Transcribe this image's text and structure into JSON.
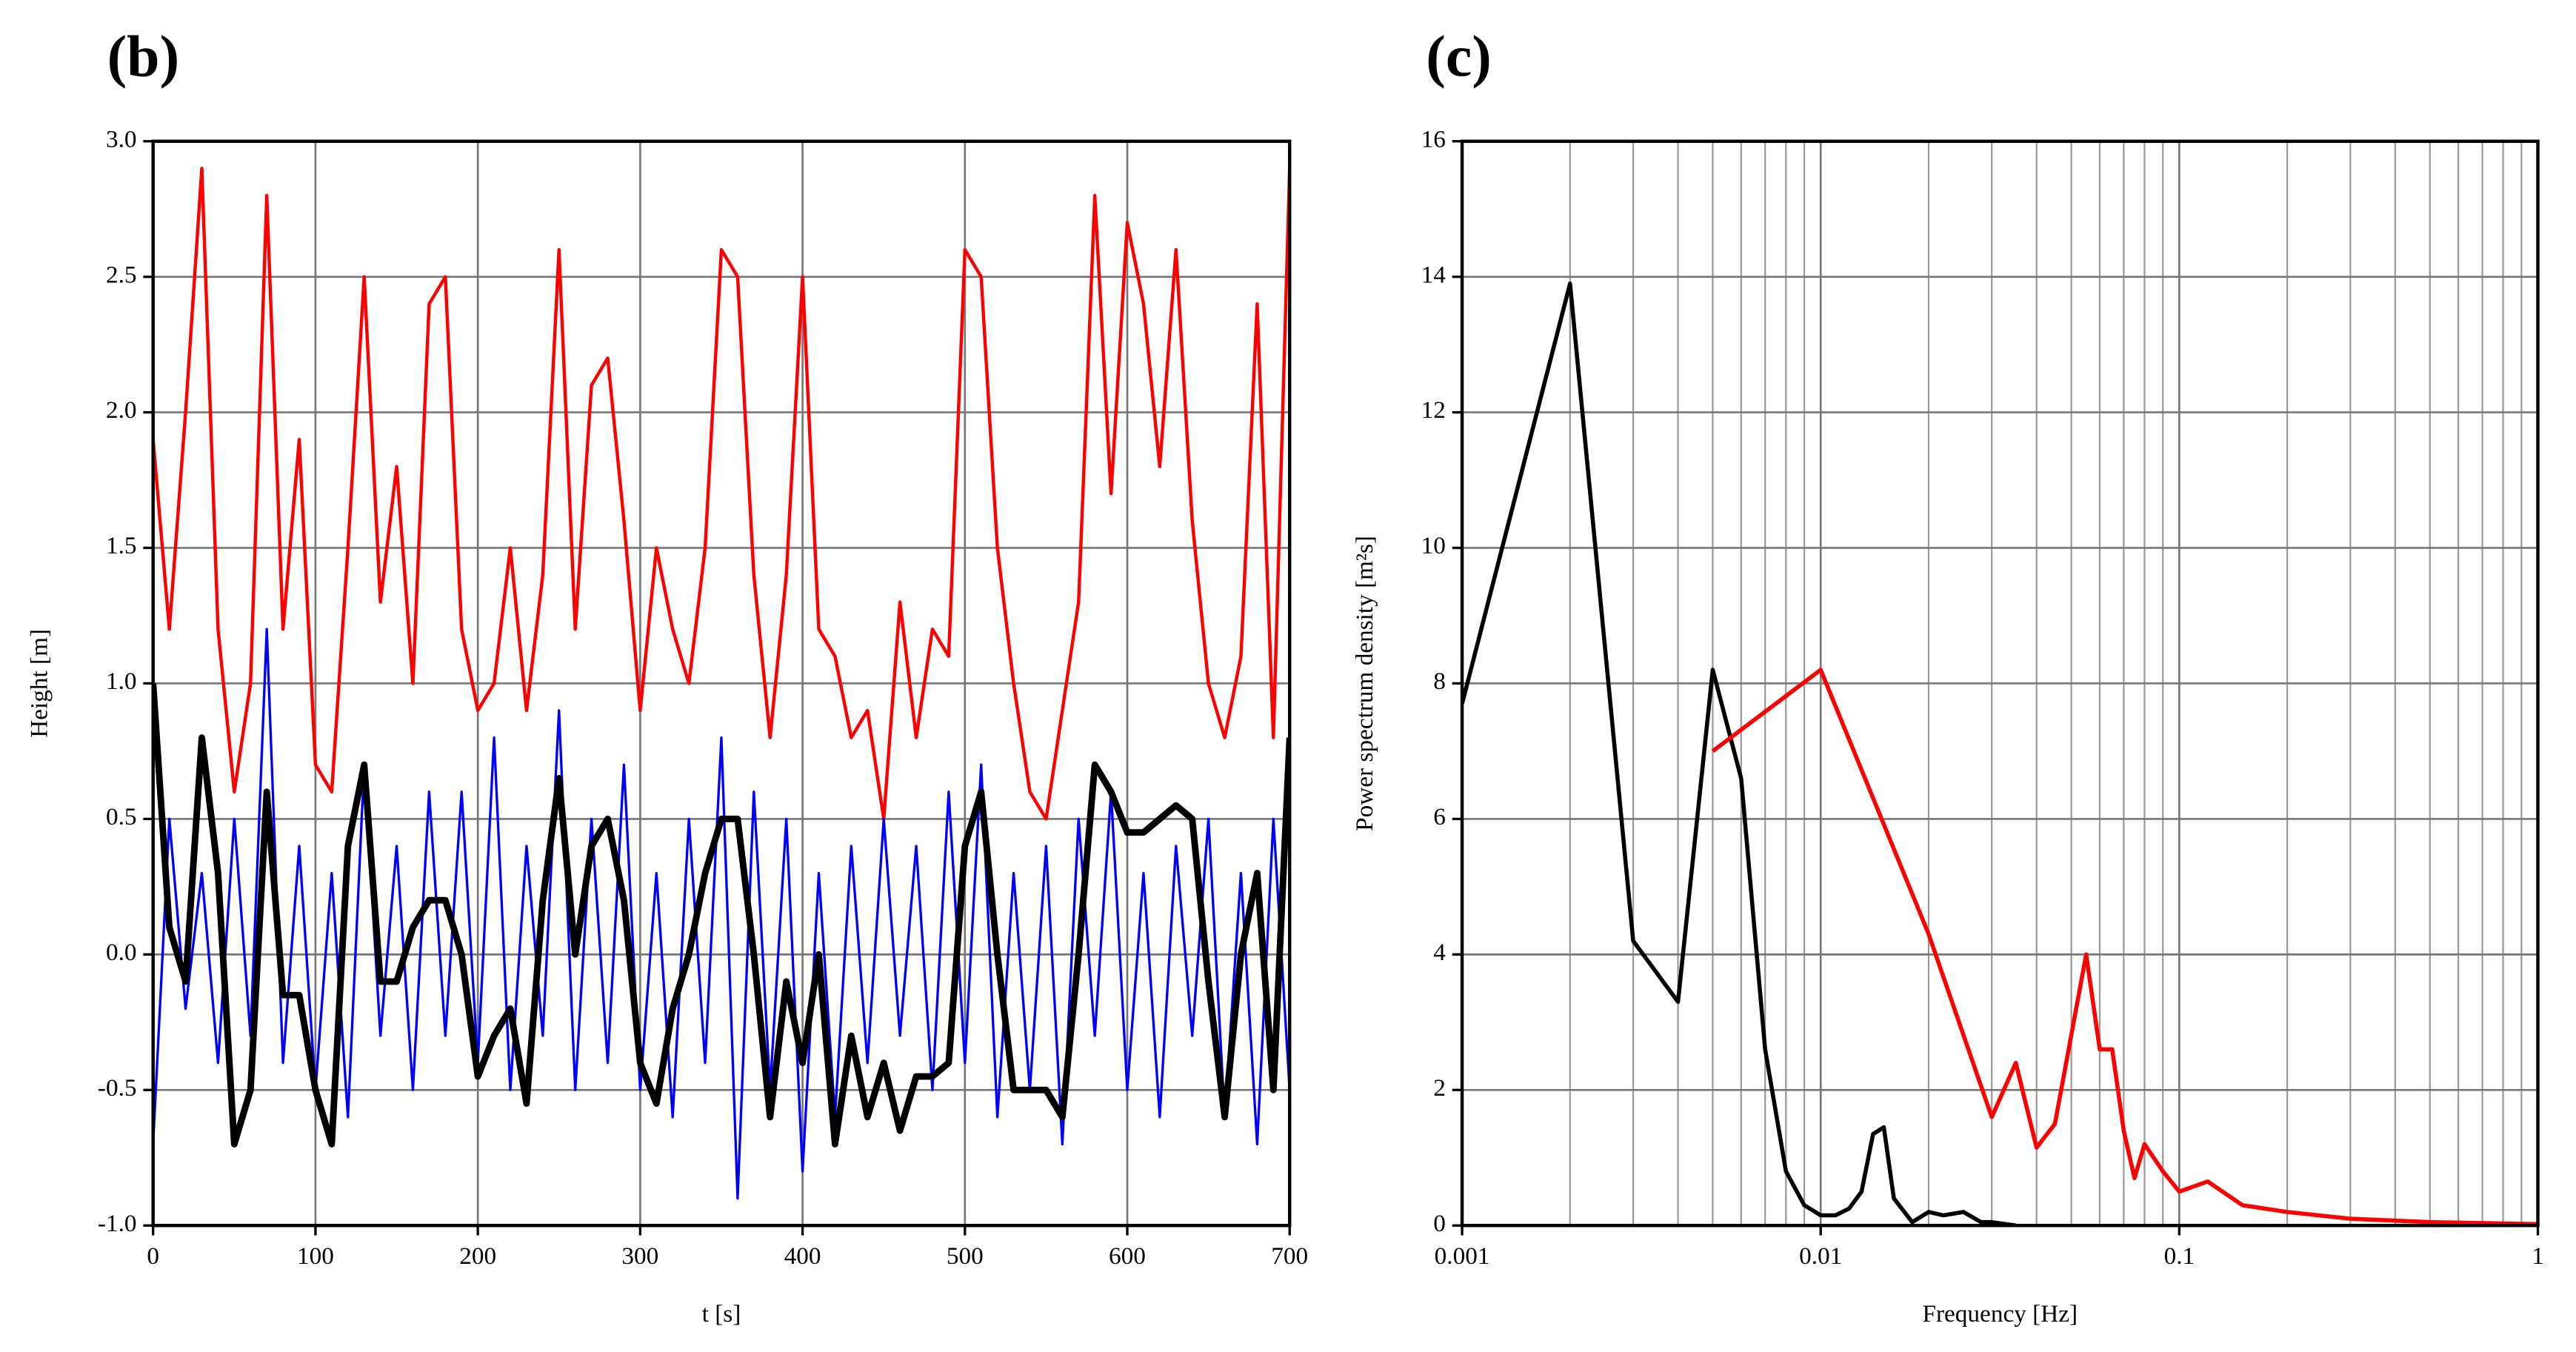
{
  "chart_data": [
    {
      "type": "line",
      "title": "(b)",
      "x_label": "t [s]",
      "y_label": "Height [m]",
      "x": [
        0,
        10,
        20,
        30,
        40,
        50,
        60,
        70,
        80,
        90,
        100,
        110,
        120,
        130,
        140,
        150,
        160,
        170,
        180,
        190,
        200,
        210,
        220,
        230,
        240,
        250,
        260,
        270,
        280,
        290,
        300,
        310,
        320,
        330,
        340,
        350,
        360,
        370,
        380,
        390,
        400,
        410,
        420,
        430,
        440,
        450,
        460,
        470,
        480,
        490,
        500,
        510,
        520,
        530,
        540,
        550,
        560,
        570,
        580,
        590,
        600,
        610,
        620,
        630,
        640,
        650,
        660,
        670,
        680,
        690,
        700
      ],
      "series": [
        {
          "color": "#ff0000",
          "width": 2,
          "values": [
            1.9,
            1.2,
            2.0,
            2.9,
            1.2,
            0.6,
            1.0,
            2.8,
            1.2,
            1.9,
            0.7,
            0.6,
            1.5,
            2.5,
            1.3,
            1.8,
            1.0,
            2.4,
            2.5,
            1.2,
            0.9,
            1.0,
            1.5,
            0.9,
            1.4,
            2.6,
            1.2,
            2.1,
            2.2,
            1.6,
            0.9,
            1.5,
            1.2,
            1.0,
            1.5,
            2.6,
            2.5,
            1.4,
            0.8,
            1.4,
            2.5,
            1.2,
            1.1,
            0.8,
            0.9,
            0.5,
            1.3,
            0.8,
            1.2,
            1.1,
            2.6,
            2.5,
            1.5,
            1.0,
            0.6,
            0.5,
            0.9,
            1.3,
            2.8,
            1.7,
            2.7,
            2.4,
            1.8,
            2.6,
            1.6,
            1.0,
            0.8,
            1.1,
            2.4,
            0.8,
            2.9
          ]
        },
        {
          "color": "#0000ff",
          "width": 1.5,
          "values": [
            -0.7,
            0.5,
            -0.2,
            0.3,
            -0.4,
            0.5,
            -0.3,
            1.2,
            -0.4,
            0.4,
            -0.5,
            0.3,
            -0.6,
            0.7,
            -0.3,
            0.4,
            -0.5,
            0.6,
            -0.3,
            0.6,
            -0.4,
            0.8,
            -0.5,
            0.4,
            -0.3,
            0.9,
            -0.5,
            0.5,
            -0.4,
            0.7,
            -0.5,
            0.3,
            -0.6,
            0.5,
            -0.4,
            0.8,
            -0.9,
            0.6,
            -0.5,
            0.5,
            -0.8,
            0.3,
            -0.6,
            0.4,
            -0.4,
            0.5,
            -0.3,
            0.4,
            -0.5,
            0.6,
            -0.4,
            0.7,
            -0.6,
            0.3,
            -0.5,
            0.4,
            -0.7,
            0.5,
            -0.3,
            0.6,
            -0.5,
            0.3,
            -0.6,
            0.4,
            -0.3,
            0.5,
            -0.6,
            0.3,
            -0.7,
            0.5,
            -0.5
          ]
        },
        {
          "color": "#000000",
          "width": 4,
          "values": [
            1.0,
            0.1,
            -0.1,
            0.8,
            0.3,
            -0.7,
            -0.5,
            0.6,
            -0.15,
            -0.15,
            -0.5,
            -0.7,
            0.4,
            0.7,
            -0.1,
            -0.1,
            0.1,
            0.2,
            0.2,
            0.0,
            -0.45,
            -0.3,
            -0.2,
            -0.55,
            0.2,
            0.65,
            0.0,
            0.4,
            0.5,
            0.2,
            -0.4,
            -0.55,
            -0.2,
            0.0,
            0.3,
            0.5,
            0.5,
            0.0,
            -0.6,
            -0.1,
            -0.4,
            0.0,
            -0.7,
            -0.3,
            -0.6,
            -0.4,
            -0.65,
            -0.45,
            -0.45,
            -0.4,
            0.4,
            0.6,
            0.0,
            -0.5,
            -0.5,
            -0.5,
            -0.6,
            0.0,
            0.7,
            0.6,
            0.45,
            0.45,
            0.5,
            0.55,
            0.5,
            -0.1,
            -0.6,
            0.0,
            0.3,
            -0.5,
            0.8
          ]
        }
      ],
      "xlim": [
        0,
        700
      ],
      "xticks": [
        0,
        100,
        200,
        300,
        400,
        500,
        600,
        700
      ],
      "ylim": [
        -1,
        3
      ],
      "yticks": [
        {
          "value": -1,
          "label": "-1.0"
        },
        -0.5,
        {
          "value": 0,
          "label": "0.0"
        },
        0.5,
        {
          "value": 1,
          "label": "1.0"
        },
        1.5,
        {
          "value": 2,
          "label": "2.0"
        },
        2.5,
        {
          "value": 3,
          "label": "3.0"
        }
      ],
      "grid": true
    },
    {
      "type": "line",
      "title": "(c)",
      "x_label": "Frequency [Hz]",
      "y_label": "Power spectrum density [m²s]",
      "x_scale": "log",
      "series": [
        {
          "color": "#000000",
          "width": 2.5,
          "x": [
            0.001,
            0.002,
            0.003,
            0.004,
            0.005,
            0.006,
            0.007,
            0.008,
            0.009,
            0.01,
            0.011,
            0.012,
            0.013,
            0.014,
            0.015,
            0.016,
            0.018,
            0.02,
            0.022,
            0.025,
            0.028,
            0.03,
            0.035
          ],
          "values": [
            7.7,
            13.9,
            4.2,
            3.3,
            8.2,
            6.6,
            2.6,
            0.8,
            0.3,
            0.15,
            0.15,
            0.25,
            0.5,
            1.35,
            1.45,
            0.4,
            0.05,
            0.2,
            0.15,
            0.2,
            0.05,
            0.05,
            0
          ]
        },
        {
          "color": "#ff0000",
          "width": 2.5,
          "x": [
            0.005,
            0.01,
            0.02,
            0.03,
            0.035,
            0.04,
            0.045,
            0.055,
            0.06,
            0.065,
            0.07,
            0.075,
            0.08,
            0.09,
            0.1,
            0.12,
            0.15,
            0.2,
            0.3,
            0.5,
            1
          ],
          "values": [
            7.0,
            8.2,
            4.3,
            1.6,
            2.4,
            1.15,
            1.5,
            4.0,
            2.6,
            2.6,
            1.4,
            0.7,
            1.2,
            0.8,
            0.5,
            0.65,
            0.3,
            0.2,
            0.1,
            0.05,
            0.02
          ]
        }
      ],
      "xlim": [
        0.001,
        1
      ],
      "xticks": [
        0.001,
        0.01,
        0.1,
        1
      ],
      "xgrid_minor": [
        0.002,
        0.003,
        0.004,
        0.005,
        0.006,
        0.007,
        0.008,
        0.009,
        0.02,
        0.03,
        0.04,
        0.05,
        0.06,
        0.07,
        0.08,
        0.09,
        0.2,
        0.3,
        0.4,
        0.5,
        0.6,
        0.7,
        0.8,
        0.9
      ],
      "ylim": [
        0,
        16
      ],
      "yticks": [
        0,
        2,
        4,
        6,
        8,
        10,
        12,
        14,
        16
      ],
      "grid": true
    }
  ]
}
